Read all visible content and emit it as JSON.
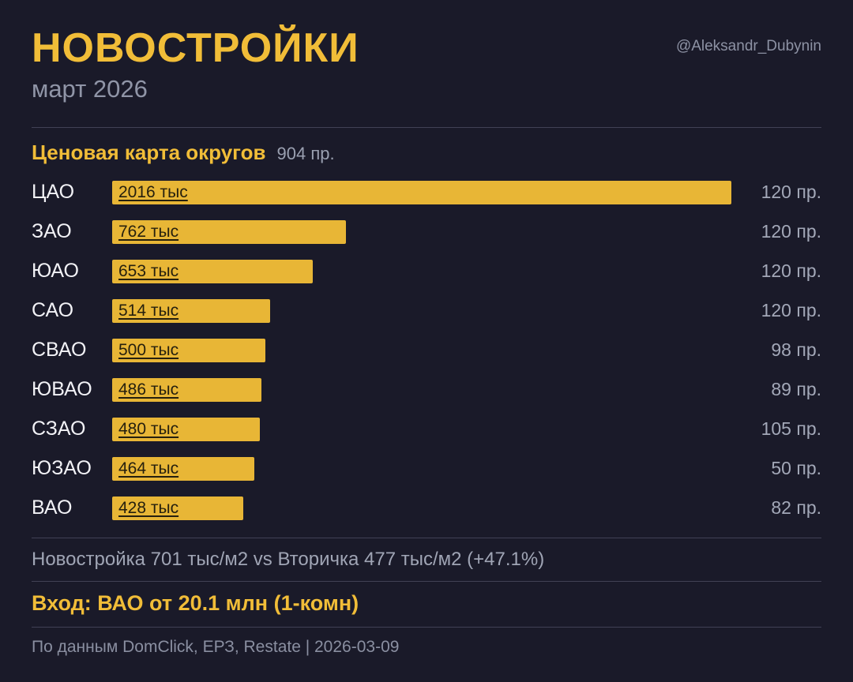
{
  "header": {
    "title": "НОВОСТРОЙКИ",
    "subtitle": "март 2026",
    "handle": "@Aleksandr_Dubynin"
  },
  "section": {
    "title": "Ценовая карта округов",
    "count": "904 пр."
  },
  "chart_data": {
    "type": "bar",
    "orientation": "horizontal",
    "title": "Ценовая карта округов",
    "categories": [
      "ЦАО",
      "ЗАО",
      "ЮАО",
      "САО",
      "СВАО",
      "ЮВАО",
      "СЗАО",
      "ЮЗАО",
      "ВАО"
    ],
    "values": [
      2016,
      762,
      653,
      514,
      500,
      486,
      480,
      464,
      428
    ],
    "value_labels": [
      "2016 тыс",
      "762 тыс",
      "653 тыс",
      "514 тыс",
      "500 тыс",
      "486 тыс",
      "480 тыс",
      "464 тыс",
      "428 тыс"
    ],
    "counts": [
      "120 пр.",
      "120 пр.",
      "120 пр.",
      "120 пр.",
      "98 пр.",
      "89 пр.",
      "105 пр.",
      "50 пр.",
      "82 пр."
    ],
    "xlim": [
      0,
      2016
    ],
    "units": "тыс/м2",
    "bar_color": "#e8b636",
    "grid": false,
    "legend": false
  },
  "summary": {
    "comparison": "Новостройка 701 тыс/м2  vs  Вторичка 477 тыс/м2  (+47.1%)",
    "entry": "Вход: ВАО от 20.1 млн (1-комн)"
  },
  "footer": {
    "source": "По данным DomClick, ЕРЗ, Restate  |  2026-03-09"
  },
  "colors": {
    "background": "#1a1a29",
    "accent": "#f1bd38",
    "bar": "#e8b636",
    "muted_text": "#9aa0b1"
  }
}
